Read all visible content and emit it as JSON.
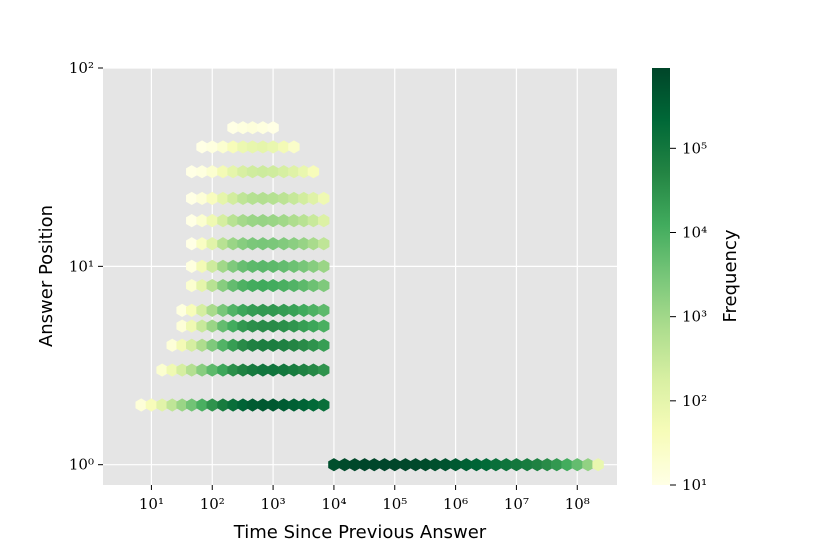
{
  "chart_data": {
    "type": "hexbin",
    "xlabel": "Time Since Previous Answer",
    "ylabel": "Answer Position",
    "colorbar_label": "Frequency",
    "xscale": "log",
    "yscale": "log",
    "cscale": "log",
    "grid": true,
    "xlim": [
      1.6,
      450000000
    ],
    "ylim": [
      0.79,
      100
    ],
    "xticks": [
      {
        "value": 10,
        "label": "10¹"
      },
      {
        "value": 100,
        "label": "10²"
      },
      {
        "value": 1000,
        "label": "10³"
      },
      {
        "value": 10000,
        "label": "10⁴"
      },
      {
        "value": 100000,
        "label": "10⁵"
      },
      {
        "value": 1000000,
        "label": "10⁶"
      },
      {
        "value": 10000000,
        "label": "10⁷"
      },
      {
        "value": 100000000,
        "label": "10⁸"
      }
    ],
    "yticks": [
      {
        "value": 1,
        "label": "10⁰"
      },
      {
        "value": 10,
        "label": "10¹"
      },
      {
        "value": 100,
        "label": "10²"
      }
    ],
    "clim": [
      10,
      900000
    ],
    "cticks": [
      {
        "value": 10,
        "label": "10¹"
      },
      {
        "value": 100,
        "label": "10²"
      },
      {
        "value": 1000,
        "label": "10³"
      },
      {
        "value": 10000,
        "label": "10⁴"
      },
      {
        "value": 100000,
        "label": "10⁵"
      }
    ],
    "cmap": [
      "#ffffe5",
      "#f7fcb9",
      "#d9f0a3",
      "#addd8e",
      "#78c679",
      "#41ab5d",
      "#238443",
      "#006837",
      "#004529"
    ],
    "cells": [
      {
        "y": 1,
        "x": [
          10000,
          15000,
          22000,
          32000,
          46000,
          68000,
          100000,
          150000,
          220000,
          320000,
          460000,
          680000,
          1000000,
          1500000,
          2200000,
          3200000,
          4600000,
          6800000,
          10000000,
          15000000,
          22000000,
          32000000,
          46000000,
          68000000,
          100000000,
          150000000,
          220000000
        ],
        "values": [
          600000,
          700000,
          800000,
          850000,
          850000,
          850000,
          850000,
          800000,
          750000,
          700000,
          600000,
          500000,
          400000,
          300000,
          250000,
          200000,
          150000,
          120000,
          100000,
          80000,
          60000,
          40000,
          25000,
          12000,
          5000,
          1500,
          80
        ]
      },
      {
        "y": 2,
        "x": [
          6.8,
          10,
          15,
          22,
          32,
          46,
          68,
          100,
          150,
          220,
          320,
          460,
          680,
          1000,
          1500,
          2200,
          3200,
          4600,
          6800
        ],
        "values": [
          15,
          40,
          120,
          400,
          1200,
          3500,
          10000,
          30000,
          80000,
          150000,
          250000,
          350000,
          400000,
          400000,
          350000,
          300000,
          250000,
          200000,
          150000
        ]
      },
      {
        "y": 3,
        "x": [
          15,
          22,
          32,
          46,
          68,
          100,
          150,
          220,
          320,
          460,
          680,
          1000,
          1500,
          2200,
          3200,
          4600,
          6800
        ],
        "values": [
          20,
          60,
          200,
          600,
          2000,
          6000,
          15000,
          35000,
          60000,
          90000,
          110000,
          110000,
          100000,
          80000,
          60000,
          45000,
          30000
        ]
      },
      {
        "y": 4,
        "x": [
          22,
          32,
          46,
          68,
          100,
          150,
          220,
          320,
          460,
          680,
          1000,
          1500,
          2200,
          3200,
          4600,
          6800
        ],
        "values": [
          15,
          50,
          200,
          700,
          2500,
          8000,
          20000,
          40000,
          60000,
          70000,
          70000,
          60000,
          50000,
          40000,
          30000,
          20000
        ]
      },
      {
        "y": 5,
        "x": [
          32,
          46,
          68,
          100,
          150,
          220,
          320,
          460,
          680,
          1000,
          1500,
          2200,
          3200,
          4600,
          6800
        ],
        "values": [
          15,
          60,
          300,
          1200,
          5000,
          12000,
          25000,
          35000,
          40000,
          40000,
          35000,
          28000,
          20000,
          15000,
          10000
        ]
      },
      {
        "y": 6,
        "x": [
          32,
          46,
          68,
          100,
          150,
          220,
          320,
          460,
          680,
          1000,
          1500,
          2200,
          3200,
          4600,
          6800
        ],
        "values": [
          12,
          40,
          200,
          800,
          3000,
          8000,
          15000,
          22000,
          25000,
          25000,
          22000,
          18000,
          13000,
          9000,
          6000
        ]
      },
      {
        "y": 8,
        "x": [
          46,
          68,
          100,
          150,
          220,
          320,
          460,
          680,
          1000,
          1500,
          2200,
          3200,
          4600,
          6800
        ],
        "values": [
          20,
          100,
          500,
          2000,
          5000,
          9000,
          12000,
          13000,
          12000,
          10000,
          8000,
          6000,
          4000,
          2500
        ]
      },
      {
        "y": 10,
        "x": [
          46,
          68,
          100,
          150,
          220,
          320,
          460,
          680,
          1000,
          1500,
          2200,
          3200,
          4600,
          6800
        ],
        "values": [
          12,
          50,
          250,
          1000,
          2500,
          4500,
          6000,
          6500,
          6000,
          5000,
          4000,
          3000,
          2000,
          1200
        ]
      },
      {
        "y": 13,
        "x": [
          46,
          68,
          100,
          150,
          220,
          320,
          460,
          680,
          1000,
          1500,
          2200,
          3200,
          4600,
          6800
        ],
        "values": [
          10,
          30,
          120,
          500,
          1200,
          2000,
          2800,
          3000,
          2800,
          2300,
          1800,
          1300,
          800,
          400
        ]
      },
      {
        "y": 17,
        "x": [
          46,
          68,
          100,
          150,
          220,
          320,
          460,
          680,
          1000,
          1500,
          2200,
          3200,
          4600,
          6800
        ],
        "values": [
          10,
          20,
          60,
          200,
          500,
          900,
          1200,
          1300,
          1200,
          1000,
          700,
          500,
          300,
          150
        ]
      },
      {
        "y": 22,
        "x": [
          46,
          68,
          100,
          150,
          220,
          320,
          460,
          680,
          1000,
          1500,
          2200,
          3200,
          4600,
          6800
        ],
        "values": [
          10,
          15,
          35,
          100,
          220,
          400,
          550,
          600,
          550,
          450,
          320,
          220,
          130,
          60
        ]
      },
      {
        "y": 30,
        "x": [
          46,
          68,
          100,
          150,
          220,
          320,
          460,
          680,
          1000,
          1500,
          2200,
          3200,
          4600
        ],
        "values": [
          10,
          12,
          20,
          50,
          100,
          180,
          240,
          260,
          240,
          190,
          130,
          80,
          40
        ]
      },
      {
        "y": 40,
        "x": [
          68,
          100,
          150,
          220,
          320,
          460,
          680,
          1000,
          1500,
          2200
        ],
        "values": [
          10,
          12,
          20,
          40,
          70,
          90,
          100,
          80,
          50,
          25
        ]
      },
      {
        "y": 50,
        "x": [
          220,
          320,
          460,
          680,
          1000
        ],
        "values": [
          10,
          12,
          14,
          12,
          10
        ]
      }
    ]
  }
}
